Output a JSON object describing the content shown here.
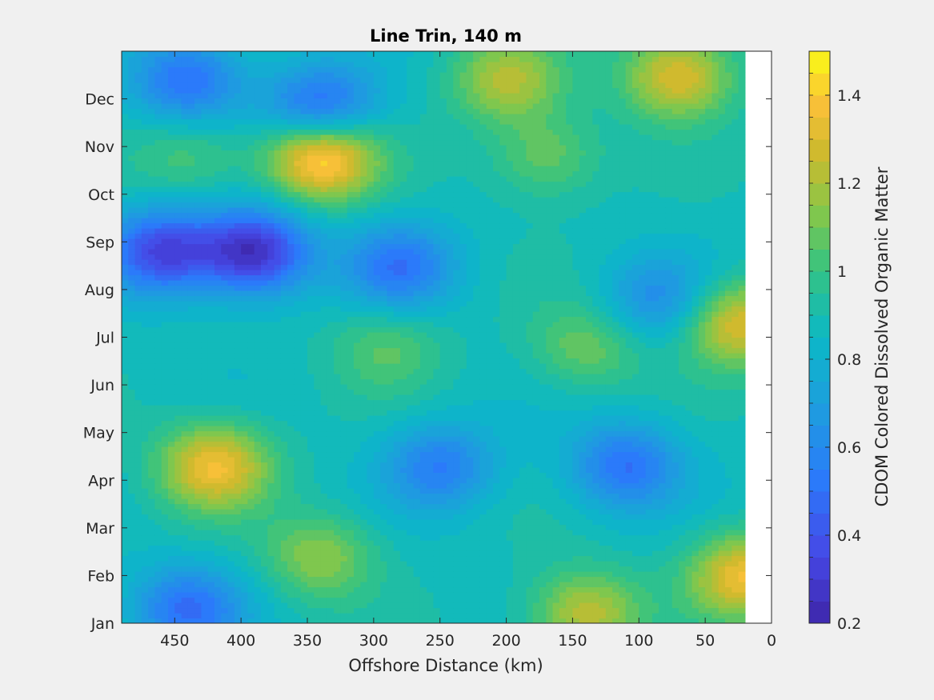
{
  "chart_data": {
    "type": "heatmap",
    "title": "Line Trin, 140 m",
    "xlabel": "Offshore Distance (km)",
    "ylabel": "",
    "x_ticks": [
      450,
      400,
      350,
      300,
      250,
      200,
      150,
      100,
      50,
      0
    ],
    "x_range": [
      490,
      0
    ],
    "x_reversed": true,
    "y_ticks": [
      "Jan",
      "Feb",
      "Mar",
      "Apr",
      "May",
      "Jun",
      "Jul",
      "Aug",
      "Sep",
      "Oct",
      "Nov",
      "Dec"
    ],
    "colorbar": {
      "label": "CDOM Colored Dissolved Organic Matter",
      "range": [
        0.2,
        1.5
      ],
      "ticks": [
        0.2,
        0.4,
        0.6,
        0.8,
        1,
        1.2,
        1.4
      ],
      "levels": 26
    },
    "data_x_range": [
      490,
      20
    ],
    "background_value": 0.88,
    "features": [
      {
        "x": 340,
        "month": 9.8,
        "value": 1.5
      },
      {
        "x": 390,
        "month": 7.8,
        "value": 0.25
      },
      {
        "x": 460,
        "month": 7.8,
        "value": 0.35
      },
      {
        "x": 420,
        "month": 3.3,
        "value": 1.35
      },
      {
        "x": 25,
        "month": 6.3,
        "value": 1.32
      },
      {
        "x": 70,
        "month": 11.5,
        "value": 1.32
      },
      {
        "x": 200,
        "month": 11.4,
        "value": 1.2
      },
      {
        "x": 140,
        "month": 0.2,
        "value": 1.25
      },
      {
        "x": 340,
        "month": 10.8,
        "value": 0.42
      },
      {
        "x": 440,
        "month": 11.4,
        "value": 0.48
      },
      {
        "x": 110,
        "month": 3.3,
        "value": 0.5
      },
      {
        "x": 250,
        "month": 3.3,
        "value": 0.55
      },
      {
        "x": 20,
        "month": 1.0,
        "value": 1.35
      },
      {
        "x": 280,
        "month": 7.5,
        "value": 0.52
      },
      {
        "x": 440,
        "month": 0.3,
        "value": 0.5
      },
      {
        "x": 340,
        "month": 1.4,
        "value": 1.15
      },
      {
        "x": 140,
        "month": 5.8,
        "value": 1.1
      },
      {
        "x": 290,
        "month": 5.8,
        "value": 1.05
      },
      {
        "x": 440,
        "month": 9.8,
        "value": 1.05
      },
      {
        "x": 85,
        "month": 6.8,
        "value": 0.62
      },
      {
        "x": 170,
        "month": 9.8,
        "value": 1.1
      }
    ]
  }
}
